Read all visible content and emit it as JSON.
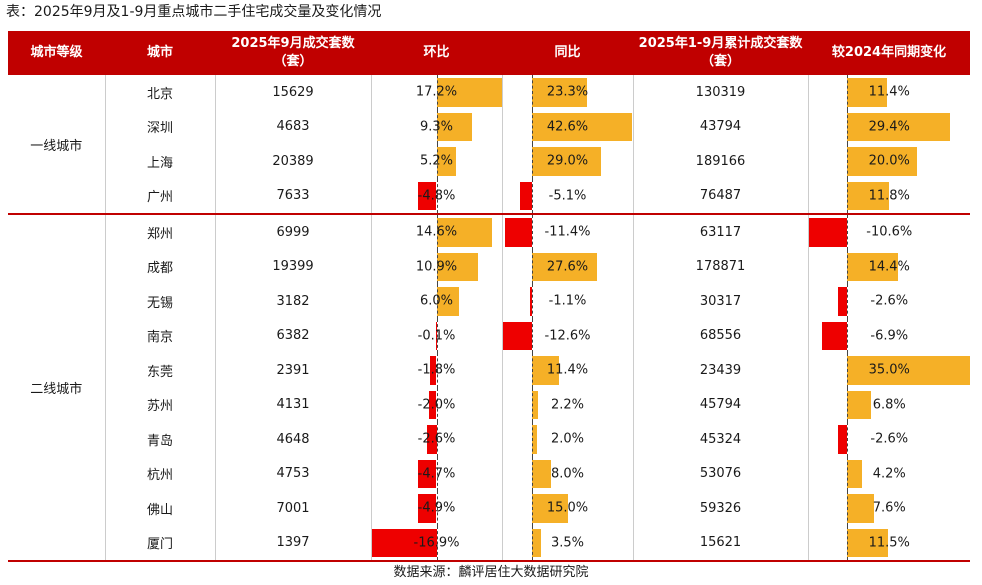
{
  "caption": "表：2025年9月及1-9月重点城市二手住宅成交量及变化情况",
  "source": "数据来源：麟评居住大数据研究院",
  "colors": {
    "header": "#c00000",
    "positive": "#f5b027",
    "negative": "#ee0000"
  },
  "headers": {
    "tier": "城市等级",
    "city": "城市",
    "sep_vol": "2025年9月成交套数（套）",
    "mom": "环比",
    "yoy": "同比",
    "ytd_vol": "2025年1-9月累计成交套数（套）",
    "ytd_chg": "较2024年同期变化"
  },
  "tiers": [
    {
      "name": "一线城市",
      "rows": 4
    },
    {
      "name": "二线城市",
      "rows": 10
    }
  ],
  "chart_data": {
    "type": "table",
    "title": "2025年9月及1-9月重点城市二手住宅成交量及变化情况",
    "columns": [
      "城市等级",
      "城市",
      "2025年9月成交套数（套）",
      "环比",
      "同比",
      "2025年1-9月累计成交套数（套）",
      "较2024年同期变化"
    ],
    "bar_columns": [
      "mom",
      "yoy",
      "ytd_chg"
    ],
    "bar_ranges": {
      "mom": [
        -16.9,
        17.2
      ],
      "yoy": [
        -12.6,
        42.6
      ],
      "ytd_chg": [
        -10.6,
        35.0
      ]
    },
    "rows": [
      {
        "tier": "一线城市",
        "city": "北京",
        "sep_vol": "15629",
        "mom": 17.2,
        "mom_label": "17.2%",
        "yoy": 23.3,
        "yoy_label": "23.3%",
        "ytd_vol": "130319",
        "ytd_chg": 11.4,
        "ytd_chg_label": "11.4%"
      },
      {
        "tier": "一线城市",
        "city": "深圳",
        "sep_vol": "4683",
        "mom": 9.3,
        "mom_label": "9.3%",
        "yoy": 42.6,
        "yoy_label": "42.6%",
        "ytd_vol": "43794",
        "ytd_chg": 29.4,
        "ytd_chg_label": "29.4%"
      },
      {
        "tier": "一线城市",
        "city": "上海",
        "sep_vol": "20389",
        "mom": 5.2,
        "mom_label": "5.2%",
        "yoy": 29.0,
        "yoy_label": "29.0%",
        "ytd_vol": "189166",
        "ytd_chg": 20.0,
        "ytd_chg_label": "20.0%"
      },
      {
        "tier": "一线城市",
        "city": "广州",
        "sep_vol": "7633",
        "mom": -4.8,
        "mom_label": "-4.8%",
        "yoy": -5.1,
        "yoy_label": "-5.1%",
        "ytd_vol": "76487",
        "ytd_chg": 11.8,
        "ytd_chg_label": "11.8%"
      },
      {
        "tier": "二线城市",
        "city": "郑州",
        "sep_vol": "6999",
        "mom": 14.6,
        "mom_label": "14.6%",
        "yoy": -11.4,
        "yoy_label": "-11.4%",
        "ytd_vol": "63117",
        "ytd_chg": -10.6,
        "ytd_chg_label": "-10.6%"
      },
      {
        "tier": "二线城市",
        "city": "成都",
        "sep_vol": "19399",
        "mom": 10.9,
        "mom_label": "10.9%",
        "yoy": 27.6,
        "yoy_label": "27.6%",
        "ytd_vol": "178871",
        "ytd_chg": 14.4,
        "ytd_chg_label": "14.4%"
      },
      {
        "tier": "二线城市",
        "city": "无锡",
        "sep_vol": "3182",
        "mom": 6.0,
        "mom_label": "6.0%",
        "yoy": -1.1,
        "yoy_label": "-1.1%",
        "ytd_vol": "30317",
        "ytd_chg": -2.6,
        "ytd_chg_label": "-2.6%"
      },
      {
        "tier": "二线城市",
        "city": "南京",
        "sep_vol": "6382",
        "mom": -0.1,
        "mom_label": "-0.1%",
        "yoy": -12.6,
        "yoy_label": "-12.6%",
        "ytd_vol": "68556",
        "ytd_chg": -6.9,
        "ytd_chg_label": "-6.9%"
      },
      {
        "tier": "二线城市",
        "city": "东莞",
        "sep_vol": "2391",
        "mom": -1.8,
        "mom_label": "-1.8%",
        "yoy": 11.4,
        "yoy_label": "11.4%",
        "ytd_vol": "23439",
        "ytd_chg": 35.0,
        "ytd_chg_label": "35.0%"
      },
      {
        "tier": "二线城市",
        "city": "苏州",
        "sep_vol": "4131",
        "mom": -2.0,
        "mom_label": "-2.0%",
        "yoy": 2.2,
        "yoy_label": "2.2%",
        "ytd_vol": "45794",
        "ytd_chg": 6.8,
        "ytd_chg_label": "6.8%"
      },
      {
        "tier": "二线城市",
        "city": "青岛",
        "sep_vol": "4648",
        "mom": -2.6,
        "mom_label": "-2.6%",
        "yoy": 2.0,
        "yoy_label": "2.0%",
        "ytd_vol": "45324",
        "ytd_chg": -2.6,
        "ytd_chg_label": "-2.6%"
      },
      {
        "tier": "二线城市",
        "city": "杭州",
        "sep_vol": "4753",
        "mom": -4.7,
        "mom_label": "-4.7%",
        "yoy": 8.0,
        "yoy_label": "8.0%",
        "ytd_vol": "53076",
        "ytd_chg": 4.2,
        "ytd_chg_label": "4.2%"
      },
      {
        "tier": "二线城市",
        "city": "佛山",
        "sep_vol": "7001",
        "mom": -4.9,
        "mom_label": "-4.9%",
        "yoy": 15.0,
        "yoy_label": "15.0%",
        "ytd_vol": "59326",
        "ytd_chg": 7.6,
        "ytd_chg_label": "7.6%"
      },
      {
        "tier": "二线城市",
        "city": "厦门",
        "sep_vol": "1397",
        "mom": -16.9,
        "mom_label": "-16.9%",
        "yoy": 3.5,
        "yoy_label": "3.5%",
        "ytd_vol": "15621",
        "ytd_chg": 11.5,
        "ytd_chg_label": "11.5%"
      }
    ]
  }
}
